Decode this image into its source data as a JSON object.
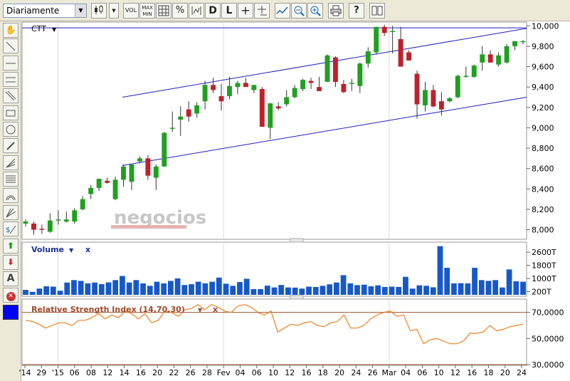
{
  "toolbar": {
    "period": "Diariamente",
    "vol": "VOL",
    "maxmin": "MAX MIN",
    "pct": "%",
    "d": "D",
    "l": "L",
    "help": "?"
  },
  "chart_data": [
    {
      "type": "candlestick",
      "symbol": "CTT",
      "yticks": [
        8000,
        8200,
        8400,
        8600,
        8800,
        9000,
        9200,
        9400,
        9600,
        9800,
        10000
      ],
      "ytick_labels": [
        "8,000",
        "8,200",
        "8,400",
        "8,600",
        "8,800",
        "9,000",
        "9,200",
        "9,400",
        "9,600",
        "9,800",
        "10,000"
      ],
      "ylim": [
        7920,
        10030
      ],
      "watermark": "negocios",
      "candles": [
        {
          "o": 8060,
          "h": 8100,
          "l": 8030,
          "c": 8080
        },
        {
          "o": 8060,
          "h": 8080,
          "l": 7950,
          "c": 8000
        },
        {
          "o": 8010,
          "h": 8050,
          "l": 7960,
          "c": 8000
        },
        {
          "o": 7980,
          "h": 8160,
          "l": 7970,
          "c": 8090
        },
        {
          "o": 8090,
          "h": 8190,
          "l": 8050,
          "c": 8100
        },
        {
          "o": 8080,
          "h": 8180,
          "l": 8070,
          "c": 8100
        },
        {
          "o": 8080,
          "h": 8210,
          "l": 8060,
          "c": 8190
        },
        {
          "o": 8200,
          "h": 8330,
          "l": 8190,
          "c": 8300
        },
        {
          "o": 8350,
          "h": 8440,
          "l": 8300,
          "c": 8410
        },
        {
          "o": 8410,
          "h": 8500,
          "l": 8380,
          "c": 8500
        },
        {
          "o": 8480,
          "h": 8510,
          "l": 8450,
          "c": 8460
        },
        {
          "o": 8300,
          "h": 8520,
          "l": 8290,
          "c": 8490
        },
        {
          "o": 8490,
          "h": 8640,
          "l": 8420,
          "c": 8620
        },
        {
          "o": 8470,
          "h": 8630,
          "l": 8390,
          "c": 8640
        },
        {
          "o": 8670,
          "h": 8720,
          "l": 8650,
          "c": 8700
        },
        {
          "o": 8700,
          "h": 8730,
          "l": 8490,
          "c": 8530
        },
        {
          "o": 8510,
          "h": 8640,
          "l": 8390,
          "c": 8620
        },
        {
          "o": 8620,
          "h": 8960,
          "l": 8620,
          "c": 8950
        },
        {
          "o": 8990,
          "h": 9160,
          "l": 8960,
          "c": 9000
        },
        {
          "o": 9080,
          "h": 9210,
          "l": 8920,
          "c": 9110
        },
        {
          "o": 9180,
          "h": 9260,
          "l": 9060,
          "c": 9110
        },
        {
          "o": 9140,
          "h": 9250,
          "l": 9100,
          "c": 9220
        },
        {
          "o": 9260,
          "h": 9460,
          "l": 9180,
          "c": 9420
        },
        {
          "o": 9420,
          "h": 9490,
          "l": 9340,
          "c": 9370
        },
        {
          "o": 9310,
          "h": 9430,
          "l": 9170,
          "c": 9260
        },
        {
          "o": 9310,
          "h": 9500,
          "l": 9280,
          "c": 9410
        },
        {
          "o": 9400,
          "h": 9460,
          "l": 9330,
          "c": 9440
        },
        {
          "o": 9440,
          "h": 9490,
          "l": 9400,
          "c": 9400
        },
        {
          "o": 9370,
          "h": 9420,
          "l": 9340,
          "c": 9420
        },
        {
          "o": 9380,
          "h": 9400,
          "l": 9010,
          "c": 9010
        },
        {
          "o": 9000,
          "h": 9230,
          "l": 8890,
          "c": 9240
        },
        {
          "o": 9210,
          "h": 9250,
          "l": 9170,
          "c": 9190
        },
        {
          "o": 9230,
          "h": 9370,
          "l": 9210,
          "c": 9300
        },
        {
          "o": 9300,
          "h": 9420,
          "l": 9290,
          "c": 9390
        },
        {
          "o": 9380,
          "h": 9480,
          "l": 9360,
          "c": 9470
        },
        {
          "o": 9460,
          "h": 9490,
          "l": 9380,
          "c": 9440
        },
        {
          "o": 9400,
          "h": 9500,
          "l": 9360,
          "c": 9360
        },
        {
          "o": 9450,
          "h": 9720,
          "l": 9450,
          "c": 9710
        },
        {
          "o": 9690,
          "h": 9700,
          "l": 9400,
          "c": 9450
        },
        {
          "o": 9430,
          "h": 9470,
          "l": 9340,
          "c": 9350
        },
        {
          "o": 9430,
          "h": 9480,
          "l": 9360,
          "c": 9440
        },
        {
          "o": 9410,
          "h": 9640,
          "l": 9340,
          "c": 9630
        },
        {
          "o": 9630,
          "h": 9790,
          "l": 9590,
          "c": 9750
        },
        {
          "o": 9740,
          "h": 9990,
          "l": 9720,
          "c": 9990
        },
        {
          "o": 9990,
          "h": 10010,
          "l": 9900,
          "c": 9930
        },
        {
          "o": 9950,
          "h": 10000,
          "l": 9730,
          "c": 9950
        },
        {
          "o": 9870,
          "h": 9990,
          "l": 9620,
          "c": 9600
        },
        {
          "o": 9740,
          "h": 9760,
          "l": 9660,
          "c": 9660
        },
        {
          "o": 9530,
          "h": 9560,
          "l": 9090,
          "c": 9230
        },
        {
          "o": 9220,
          "h": 9450,
          "l": 9160,
          "c": 9370
        },
        {
          "o": 9370,
          "h": 9420,
          "l": 9200,
          "c": 9210
        },
        {
          "o": 9260,
          "h": 9350,
          "l": 9120,
          "c": 9180
        },
        {
          "o": 9260,
          "h": 9300,
          "l": 9250,
          "c": 9290
        },
        {
          "o": 9300,
          "h": 9520,
          "l": 9290,
          "c": 9510
        },
        {
          "o": 9500,
          "h": 9600,
          "l": 9490,
          "c": 9510
        },
        {
          "o": 9500,
          "h": 9620,
          "l": 9490,
          "c": 9610
        },
        {
          "o": 9640,
          "h": 9800,
          "l": 9560,
          "c": 9720
        },
        {
          "o": 9720,
          "h": 9760,
          "l": 9640,
          "c": 9640
        },
        {
          "o": 9620,
          "h": 9740,
          "l": 9600,
          "c": 9710
        },
        {
          "o": 9640,
          "h": 9820,
          "l": 9630,
          "c": 9800
        },
        {
          "o": 9800,
          "h": 9850,
          "l": 9760,
          "c": 9850
        },
        {
          "o": 9840,
          "h": 9860,
          "l": 9820,
          "c": 9850
        }
      ]
    },
    {
      "type": "bar",
      "title": "Volume",
      "yticks": [
        200,
        1000,
        1800,
        2600
      ],
      "ytick_labels": [
        "200T",
        "1000T",
        "1800T",
        "2600T"
      ],
      "ylim": [
        0,
        3000
      ],
      "values": [
        300,
        180,
        380,
        520,
        500,
        250,
        750,
        900,
        850,
        700,
        750,
        650,
        760,
        900,
        1150,
        750,
        900,
        700,
        550,
        800,
        700,
        850,
        1000,
        600,
        650,
        800,
        700,
        800,
        1050,
        680,
        550,
        780,
        980,
        350,
        350,
        560,
        450,
        600,
        450,
        440,
        380,
        500,
        480,
        550,
        640,
        750,
        1200,
        700,
        590,
        620,
        520,
        580,
        480,
        500,
        480,
        1100,
        380,
        580,
        550,
        460,
        2970,
        1650,
        700,
        710,
        700,
        1650,
        900,
        850,
        900,
        450,
        1550,
        830,
        800
      ]
    },
    {
      "type": "line",
      "title": "Relative Strength Index (14,70,30)",
      "yticks": [
        30,
        50,
        70
      ],
      "ytick_labels": [
        "30,0000",
        "50,0000",
        "70,0000"
      ],
      "ylim": [
        30,
        78
      ],
      "thresholds": [
        70,
        30
      ],
      "values": [
        64,
        63,
        61,
        58,
        60,
        62,
        62,
        60,
        64,
        64,
        66,
        69,
        65,
        68,
        66,
        71,
        69,
        65,
        69,
        62,
        64,
        71,
        70,
        67,
        72,
        73,
        76,
        72,
        76,
        74,
        71,
        70,
        75,
        76,
        74,
        70,
        68,
        71,
        55,
        58,
        61,
        60,
        62,
        63,
        60,
        59,
        62,
        63,
        68,
        58,
        58,
        60,
        65,
        68,
        70,
        71,
        67,
        68,
        56,
        57,
        46,
        49,
        50,
        48,
        46,
        46,
        48,
        54,
        54,
        55,
        60,
        56,
        57,
        59,
        60,
        61
      ]
    },
    {
      "type": "axis",
      "xtick_labels": [
        "'14",
        "29",
        "'15",
        "06",
        "08",
        "12",
        "14",
        "16",
        "20",
        "22",
        "26",
        "28",
        "Fev",
        "04",
        "06",
        "10",
        "12",
        "16",
        "18",
        "20",
        "24",
        "26",
        "Mar",
        "04",
        "06",
        "10",
        "12",
        "16",
        "18",
        "20",
        "24"
      ]
    }
  ]
}
